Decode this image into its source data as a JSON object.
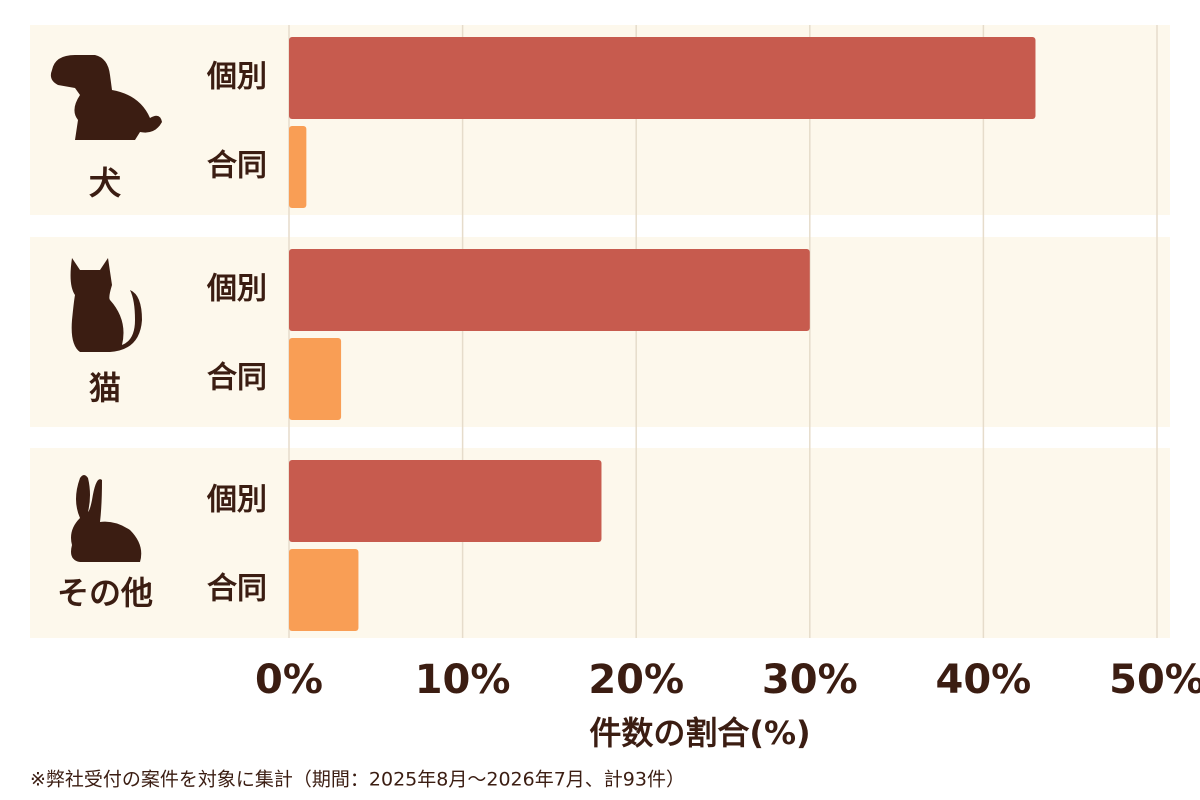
{
  "chart_data": {
    "type": "bar",
    "orientation": "horizontal",
    "categories": [
      "犬",
      "猫",
      "その他"
    ],
    "series": [
      {
        "name": "個別",
        "color": "#c75b4e",
        "values": [
          43,
          30,
          18
        ]
      },
      {
        "name": "合同",
        "color": "#f99e55",
        "values": [
          1,
          3,
          4
        ]
      }
    ],
    "xlim": [
      0,
      50
    ],
    "xticks": [
      {
        "value": 0,
        "label": "0%"
      },
      {
        "value": 10,
        "label": "10%"
      },
      {
        "value": 20,
        "label": "20%"
      },
      {
        "value": 30,
        "label": "30%"
      },
      {
        "value": 40,
        "label": "40%"
      },
      {
        "value": 50,
        "label": "50%"
      }
    ],
    "xlabel": "件数の割合(%)",
    "grid": true,
    "note": "※弊社受付の案件を対象に集計（期間：2025年8月～2026年7月、計93件）"
  }
}
